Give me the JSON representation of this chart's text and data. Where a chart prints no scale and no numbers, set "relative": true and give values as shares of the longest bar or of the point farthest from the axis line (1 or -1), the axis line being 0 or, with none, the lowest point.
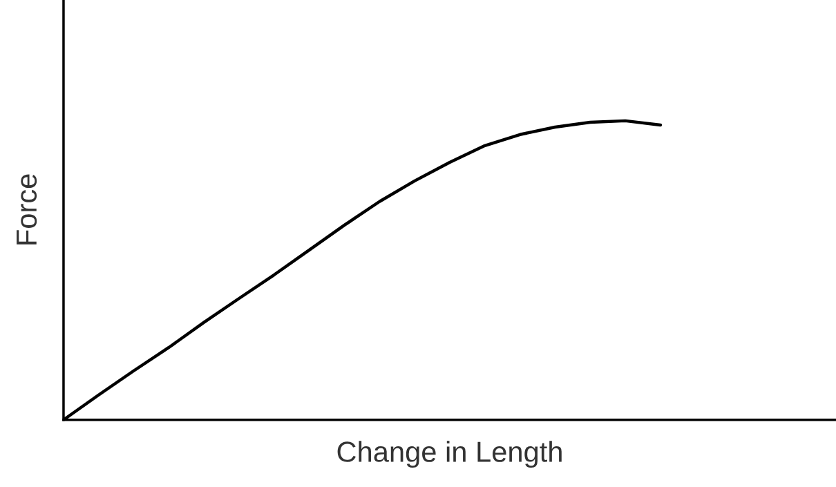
{
  "chart_data": {
    "type": "line",
    "relative": true,
    "xlabel": "Change in Length",
    "ylabel": "Force",
    "categories": [
      null,
      null,
      null,
      null,
      null,
      null,
      null,
      null,
      null,
      null,
      null,
      null,
      null,
      null,
      null,
      null,
      null,
      null,
      null,
      null,
      null,
      null,
      null
    ],
    "series": [
      {
        "color": "#000000",
        "values": [
          0,
          0.083,
          0.164,
          0.242,
          0.326,
          0.406,
          0.485,
          0.568,
          0.651,
          0.73,
          0.799,
          0.861,
          0.917,
          0.954,
          0.979,
          0.995,
          1,
          0.986,
          null,
          null,
          null,
          null,
          null
        ]
      }
    ],
    "marker": "none",
    "line_style": "solid",
    "legend": false,
    "tick_labels": false
  }
}
